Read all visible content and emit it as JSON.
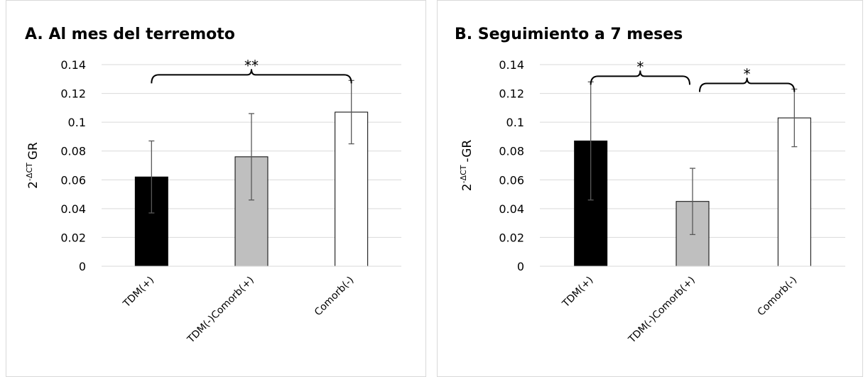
{
  "chart_data": [
    {
      "type": "bar",
      "title": "A. Al mes del terremoto",
      "y_label": {
        "base": "2",
        "sup": "-ΔCT",
        "text": "GR"
      },
      "categories": [
        "TDM(+)",
        "TDM(-)Comorb(+)",
        "Comorb(-)"
      ],
      "values": [
        0.062,
        0.076,
        0.107
      ],
      "errors": [
        0.025,
        0.03,
        0.022
      ],
      "colors": [
        "#000000",
        "#bfbfbf",
        "#ffffff"
      ],
      "ylim": [
        0,
        0.14
      ],
      "yticks": [
        0,
        0.02,
        0.04,
        0.06,
        0.08,
        0.1,
        0.12,
        0.14
      ],
      "grid": true,
      "brackets": [
        {
          "from": "TDM(+)",
          "to": "Comorb(-)",
          "label": "**"
        }
      ]
    },
    {
      "type": "bar",
      "title": "B. Seguimiento a 7 meses",
      "y_label": {
        "base": "2",
        "sup": "-ΔCT",
        "text": "-GR"
      },
      "categories": [
        "TDM(+)",
        "TDM(-)Comorb(+)",
        "Comorb(-)"
      ],
      "values": [
        0.087,
        0.045,
        0.103
      ],
      "errors": [
        0.041,
        0.023,
        0.02
      ],
      "colors": [
        "#000000",
        "#bfbfbf",
        "#ffffff"
      ],
      "ylim": [
        0,
        0.14
      ],
      "yticks": [
        0,
        0.02,
        0.04,
        0.06,
        0.08,
        0.1,
        0.12,
        0.14
      ],
      "grid": true,
      "brackets": [
        {
          "from": "TDM(+)",
          "to": "TDM(-)Comorb(+)",
          "label": "*"
        },
        {
          "from": "TDM(-)Comorb(+)",
          "to": "Comorb(-)",
          "label": "*"
        }
      ]
    }
  ]
}
